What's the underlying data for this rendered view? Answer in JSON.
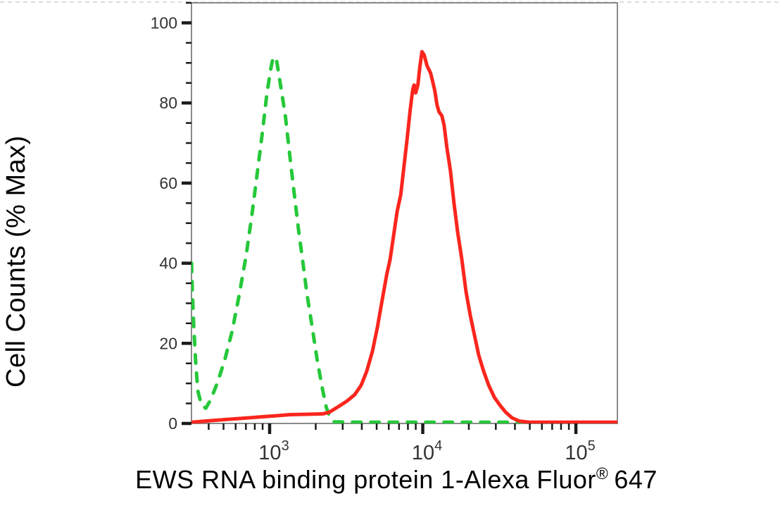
{
  "figure": {
    "ylabel": "Cell Counts (% Max)",
    "xlabel": {
      "pre": "EWS RNA binding protein 1-Alexa Fluor",
      "sup": "®",
      "post": "647"
    }
  },
  "chart_data": {
    "type": "line",
    "subtype": "flow-cytometry-overlay-histogram",
    "title": "",
    "xlabel": "EWS RNA binding protein 1-Alexa Fluor® 647",
    "ylabel": "Cell Counts (% Max)",
    "x_scale": "log10",
    "xlim_log10": [
      2.4897,
      5.271
    ],
    "ylim": [
      0,
      105
    ],
    "grid": false,
    "legend_position": "none",
    "x_major_ticks": [
      {
        "log10": 3,
        "base": "10",
        "exp": "3"
      },
      {
        "log10": 4,
        "base": "10",
        "exp": "4"
      },
      {
        "log10": 5,
        "base": "10",
        "exp": "5"
      }
    ],
    "x_minor_tick_multiples": [
      2,
      3,
      4,
      5,
      6,
      7,
      8,
      9
    ],
    "y_major_ticks": [
      0,
      20,
      40,
      60,
      80,
      100
    ],
    "y_minor_step": 5,
    "series": [
      {
        "name": "green-dashed-histogram",
        "description": "dashed green peak (negative/control population)",
        "style": "dashed",
        "color": "#26c83a",
        "peak_log10_x": 3.02,
        "peak_percent": 91.5,
        "points": [
          [
            2.49,
            40
          ],
          [
            2.495,
            33
          ],
          [
            2.505,
            24
          ],
          [
            2.519,
            14
          ],
          [
            2.532,
            8
          ],
          [
            2.556,
            4.5
          ],
          [
            2.583,
            3.8
          ],
          [
            2.616,
            6
          ],
          [
            2.662,
            10.5
          ],
          [
            2.708,
            16
          ],
          [
            2.755,
            23
          ],
          [
            2.801,
            32
          ],
          [
            2.847,
            42
          ],
          [
            2.884,
            52
          ],
          [
            2.921,
            63
          ],
          [
            2.954,
            73
          ],
          [
            2.981,
            82
          ],
          [
            3.005,
            88
          ],
          [
            3.023,
            91.5
          ],
          [
            3.046,
            90.5
          ],
          [
            3.069,
            85
          ],
          [
            3.102,
            77
          ],
          [
            3.134,
            66
          ],
          [
            3.162,
            57
          ],
          [
            3.19,
            48
          ],
          [
            3.218,
            40
          ],
          [
            3.245,
            32
          ],
          [
            3.278,
            24
          ],
          [
            3.31,
            16
          ],
          [
            3.343,
            9
          ],
          [
            3.37,
            4
          ],
          [
            3.394,
            1.5
          ],
          [
            3.421,
            0.4
          ],
          [
            3.6,
            0.3
          ],
          [
            3.9,
            0.3
          ],
          [
            4.2,
            0.3
          ],
          [
            4.5,
            0.3
          ],
          [
            4.73,
            0.3
          ]
        ]
      },
      {
        "name": "red-solid-histogram",
        "description": "solid red peak (stained population)",
        "style": "solid",
        "color": "#fa261d",
        "peak_log10_x": 3.995,
        "peak_percent": 92.8,
        "points": [
          [
            2.49,
            0.3
          ],
          [
            2.616,
            0.7
          ],
          [
            2.755,
            1.1
          ],
          [
            2.894,
            1.5
          ],
          [
            3.032,
            1.9
          ],
          [
            3.134,
            2.2
          ],
          [
            3.264,
            2.3
          ],
          [
            3.347,
            2.4
          ],
          [
            3.389,
            2.8
          ],
          [
            3.449,
            4.2
          ],
          [
            3.505,
            5.6
          ],
          [
            3.556,
            7.2
          ],
          [
            3.597,
            9.5
          ],
          [
            3.634,
            13
          ],
          [
            3.671,
            18
          ],
          [
            3.704,
            24
          ],
          [
            3.736,
            31
          ],
          [
            3.764,
            37
          ],
          [
            3.787,
            41
          ],
          [
            3.81,
            47
          ],
          [
            3.833,
            53
          ],
          [
            3.856,
            57
          ],
          [
            3.88,
            65
          ],
          [
            3.898,
            71
          ],
          [
            3.917,
            78
          ],
          [
            3.935,
            83.5
          ],
          [
            3.944,
            84.5
          ],
          [
            3.954,
            82.5
          ],
          [
            3.968,
            84.5
          ],
          [
            3.981,
            89
          ],
          [
            3.995,
            92.8
          ],
          [
            4.009,
            92
          ],
          [
            4.028,
            89.3
          ],
          [
            4.051,
            87.5
          ],
          [
            4.065,
            85.3
          ],
          [
            4.079,
            83
          ],
          [
            4.093,
            79.5
          ],
          [
            4.106,
            77.8
          ],
          [
            4.125,
            76.8
          ],
          [
            4.139,
            74.5
          ],
          [
            4.157,
            69
          ],
          [
            4.181,
            63
          ],
          [
            4.204,
            55
          ],
          [
            4.227,
            48
          ],
          [
            4.255,
            41
          ],
          [
            4.282,
            33
          ],
          [
            4.31,
            27
          ],
          [
            4.338,
            22
          ],
          [
            4.366,
            17
          ],
          [
            4.398,
            13
          ],
          [
            4.431,
            9.5
          ],
          [
            4.468,
            6.5
          ],
          [
            4.505,
            4.5
          ],
          [
            4.542,
            2.8
          ],
          [
            4.583,
            1.4
          ],
          [
            4.63,
            0.6
          ],
          [
            4.699,
            0.3
          ],
          [
            4.93,
            0.3
          ],
          [
            5.27,
            0.3
          ]
        ]
      }
    ],
    "colors": {
      "green_series": "#26c83a",
      "red_series": "#fa261d",
      "plot_border": "#8a8a8a",
      "tick": "#1b1b1b",
      "tick_label": "#333333",
      "axis_label": "#000000",
      "background": "#ffffff"
    }
  }
}
